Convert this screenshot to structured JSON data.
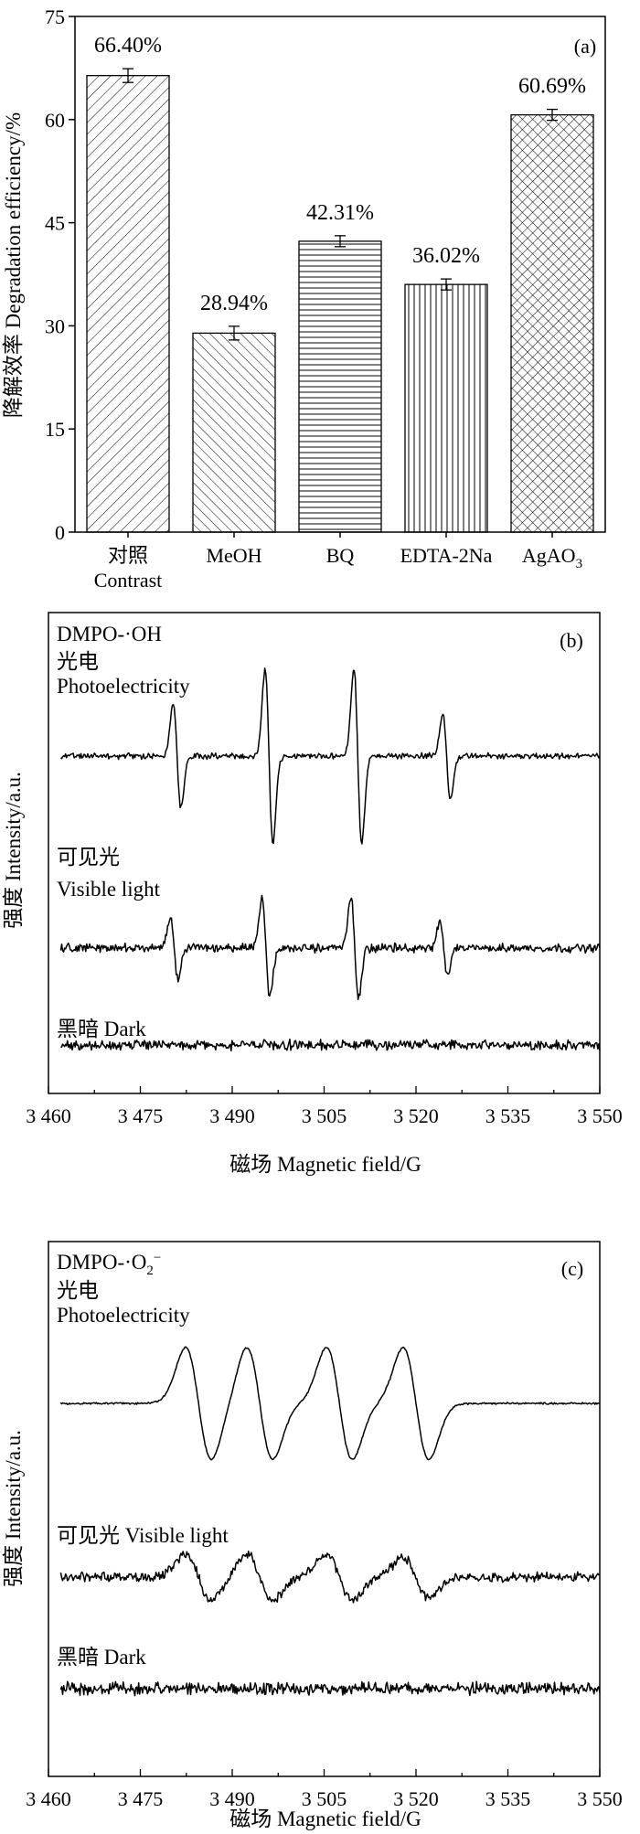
{
  "chart_data": [
    {
      "type": "bar",
      "panel_label": "(a)",
      "ylabel": "降解效率 Degradation efficiency/%",
      "ylim": [
        0,
        75
      ],
      "yticks": [
        0,
        15,
        30,
        45,
        60,
        75
      ],
      "categories": [
        {
          "line1": "对照",
          "line2": "Contrast"
        },
        {
          "line1": "MeOH",
          "line2": ""
        },
        {
          "line1": "BQ",
          "line2": ""
        },
        {
          "line1": "EDTA-2Na",
          "line2": ""
        },
        {
          "line1": "AgAO",
          "line2": "",
          "sub": "3"
        }
      ],
      "values": [
        66.4,
        28.94,
        42.31,
        36.02,
        60.69
      ],
      "errors": [
        1.0,
        1.0,
        0.8,
        0.8,
        0.8
      ],
      "value_labels": [
        "66.40%",
        "28.94%",
        "42.31%",
        "36.02%",
        "60.69%"
      ],
      "hatch_patterns": [
        "diag-right",
        "diag-left",
        "horizontal",
        "vertical",
        "crosshatch"
      ],
      "grid": false
    },
    {
      "type": "line",
      "panel_label": "(b)",
      "title_text": "DMPO-·OH",
      "xlabel": "磁场 Magnetic field/G",
      "ylabel": "强度 Intensity/a.u.",
      "xlim": [
        3460,
        3550
      ],
      "xticks": [
        "3 460",
        "3 475",
        "3 490",
        "3 505",
        "3 520",
        "3 535",
        "3 550"
      ],
      "series": [
        {
          "label_cn": "光电",
          "label_en": "Photoelectricity",
          "peak_centers": [
            3481,
            3496,
            3510.5,
            3525
          ],
          "peak_amplitudes": [
            1.2,
            2.0,
            2.0,
            1.0
          ],
          "noise": 0.08,
          "offset": 0
        },
        {
          "label_cn": "可见光",
          "label_en": "Visible light",
          "peak_centers": [
            3480.5,
            3495.5,
            3510,
            3524.5
          ],
          "peak_amplitudes": [
            0.7,
            1.15,
            1.15,
            0.6
          ],
          "noise": 0.12,
          "offset": 0
        },
        {
          "label_cn": "黑暗",
          "label_en": "Dark",
          "peak_centers": [],
          "peak_amplitudes": [],
          "noise": 0.14,
          "offset": 0
        }
      ],
      "grid": false
    },
    {
      "type": "line",
      "panel_label": "(c)",
      "title_text": "DMPO-·O",
      "title_sub": "2",
      "title_sup": "−",
      "xlabel": "磁场 Magnetic field/G",
      "ylabel": "强度 Intensity/a.u.",
      "xlim": [
        3460,
        3550
      ],
      "xticks": [
        "3 460",
        "3 475",
        "3 490",
        "3 505",
        "3 520",
        "3 535",
        "3 550"
      ],
      "series": [
        {
          "label_cn": "光电",
          "label_en": "Photoelectricity",
          "peak_centers": [
            3484.5,
            3494.5,
            3507.5,
            3520
          ],
          "peak_amplitudes": [
            1.0,
            1.0,
            1.0,
            1.0
          ],
          "noise": 0.02,
          "offset": 0
        },
        {
          "label_cn": "可见光",
          "label_en": "Visible light",
          "peak_centers": [
            3484.5,
            3494.5,
            3507.5,
            3520
          ],
          "peak_amplitudes": [
            0.42,
            0.42,
            0.42,
            0.36
          ],
          "noise": 0.1,
          "offset": 0
        },
        {
          "label_cn": "黑暗",
          "label_en": "Dark",
          "peak_centers": [],
          "peak_amplitudes": [],
          "noise": 0.13,
          "offset": 0
        }
      ],
      "grid": false
    }
  ]
}
